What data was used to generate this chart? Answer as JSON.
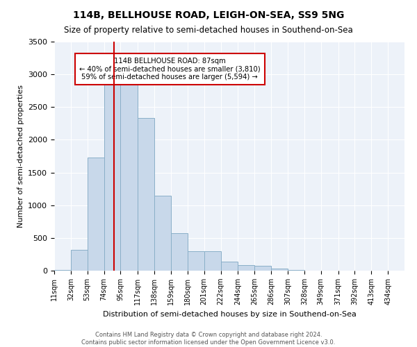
{
  "title": "114B, BELLHOUSE ROAD, LEIGH-ON-SEA, SS9 5NG",
  "subtitle": "Size of property relative to semi-detached houses in Southend-on-Sea",
  "xlabel": "Distribution of semi-detached houses by size in Southend-on-Sea",
  "ylabel": "Number of semi-detached properties",
  "footer_line1": "Contains HM Land Registry data © Crown copyright and database right 2024.",
  "footer_line2": "Contains public sector information licensed under the Open Government Licence v3.0.",
  "annotation_title": "114B BELLHOUSE ROAD: 87sqm",
  "annotation_line1": "← 40% of semi-detached houses are smaller (3,810)",
  "annotation_line2": "59% of semi-detached houses are larger (5,594) →",
  "property_size": 87,
  "bar_color": "#c8d8ea",
  "bar_edge_color": "#8aafc8",
  "vline_color": "#cc0000",
  "annotation_box_color": "#cc0000",
  "bg_color": "#edf2f9",
  "categories": [
    "11sqm",
    "32sqm",
    "53sqm",
    "74sqm",
    "95sqm",
    "117sqm",
    "138sqm",
    "159sqm",
    "180sqm",
    "201sqm",
    "222sqm",
    "244sqm",
    "265sqm",
    "286sqm",
    "307sqm",
    "328sqm",
    "349sqm",
    "371sqm",
    "392sqm",
    "413sqm",
    "434sqm"
  ],
  "bin_edges": [
    11,
    32,
    53,
    74,
    95,
    117,
    138,
    159,
    180,
    201,
    222,
    244,
    265,
    286,
    307,
    328,
    349,
    371,
    392,
    413,
    434,
    455
  ],
  "values": [
    10,
    320,
    1730,
    2960,
    3000,
    2330,
    1150,
    570,
    300,
    300,
    140,
    90,
    75,
    35,
    10,
    5,
    3,
    2,
    1,
    1,
    0
  ],
  "ylim": [
    0,
    3500
  ],
  "yticks": [
    0,
    500,
    1000,
    1500,
    2000,
    2500,
    3000,
    3500
  ]
}
